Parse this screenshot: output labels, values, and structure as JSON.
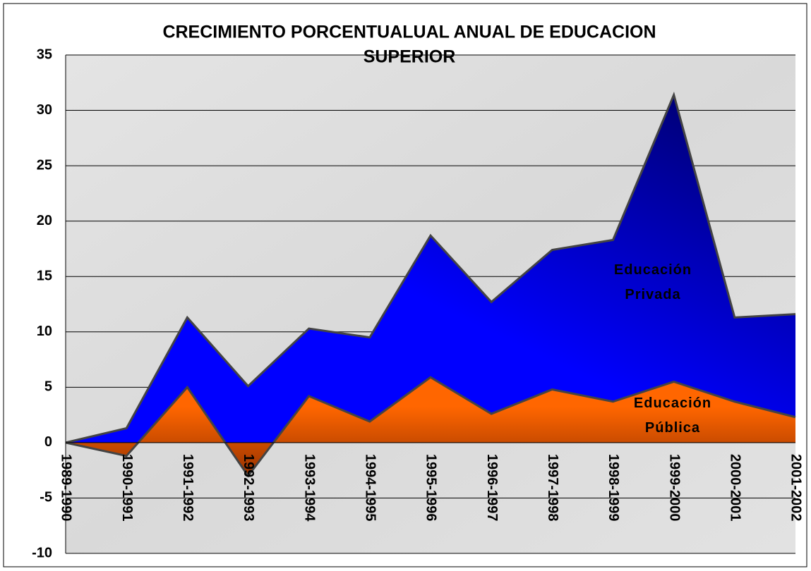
{
  "chart_data": {
    "type": "area",
    "title": [
      "CRECIMIENTO PORCENTUALUAL ANUAL DE EDUCACION",
      "SUPERIOR"
    ],
    "categories": [
      "1989-1990",
      "1990-1991",
      "1991-1992",
      "1992-1993",
      "1993-1994",
      "1994-1995",
      "1995-1996",
      "1996-1997",
      "1997-1998",
      "1998-1999",
      "1999-2000",
      "2000-2001",
      "2001-2002"
    ],
    "series": [
      {
        "name": "Educación Privada",
        "color": "#0000ff",
        "values": [
          0,
          1.3,
          11.3,
          5.1,
          10.3,
          9.5,
          18.7,
          12.7,
          17.4,
          18.3,
          31.4,
          11.3,
          11.6
        ]
      },
      {
        "name": "Educación Pública",
        "color": "#ff6600",
        "values": [
          0,
          -1.2,
          5.0,
          -3.0,
          4.2,
          1.9,
          5.9,
          2.6,
          4.8,
          3.7,
          5.5,
          3.7,
          2.3
        ]
      }
    ],
    "ylim": [
      -10,
      35
    ],
    "yticks": [
      -10,
      -5,
      0,
      5,
      10,
      15,
      20,
      25,
      30,
      35
    ],
    "grid": true
  }
}
